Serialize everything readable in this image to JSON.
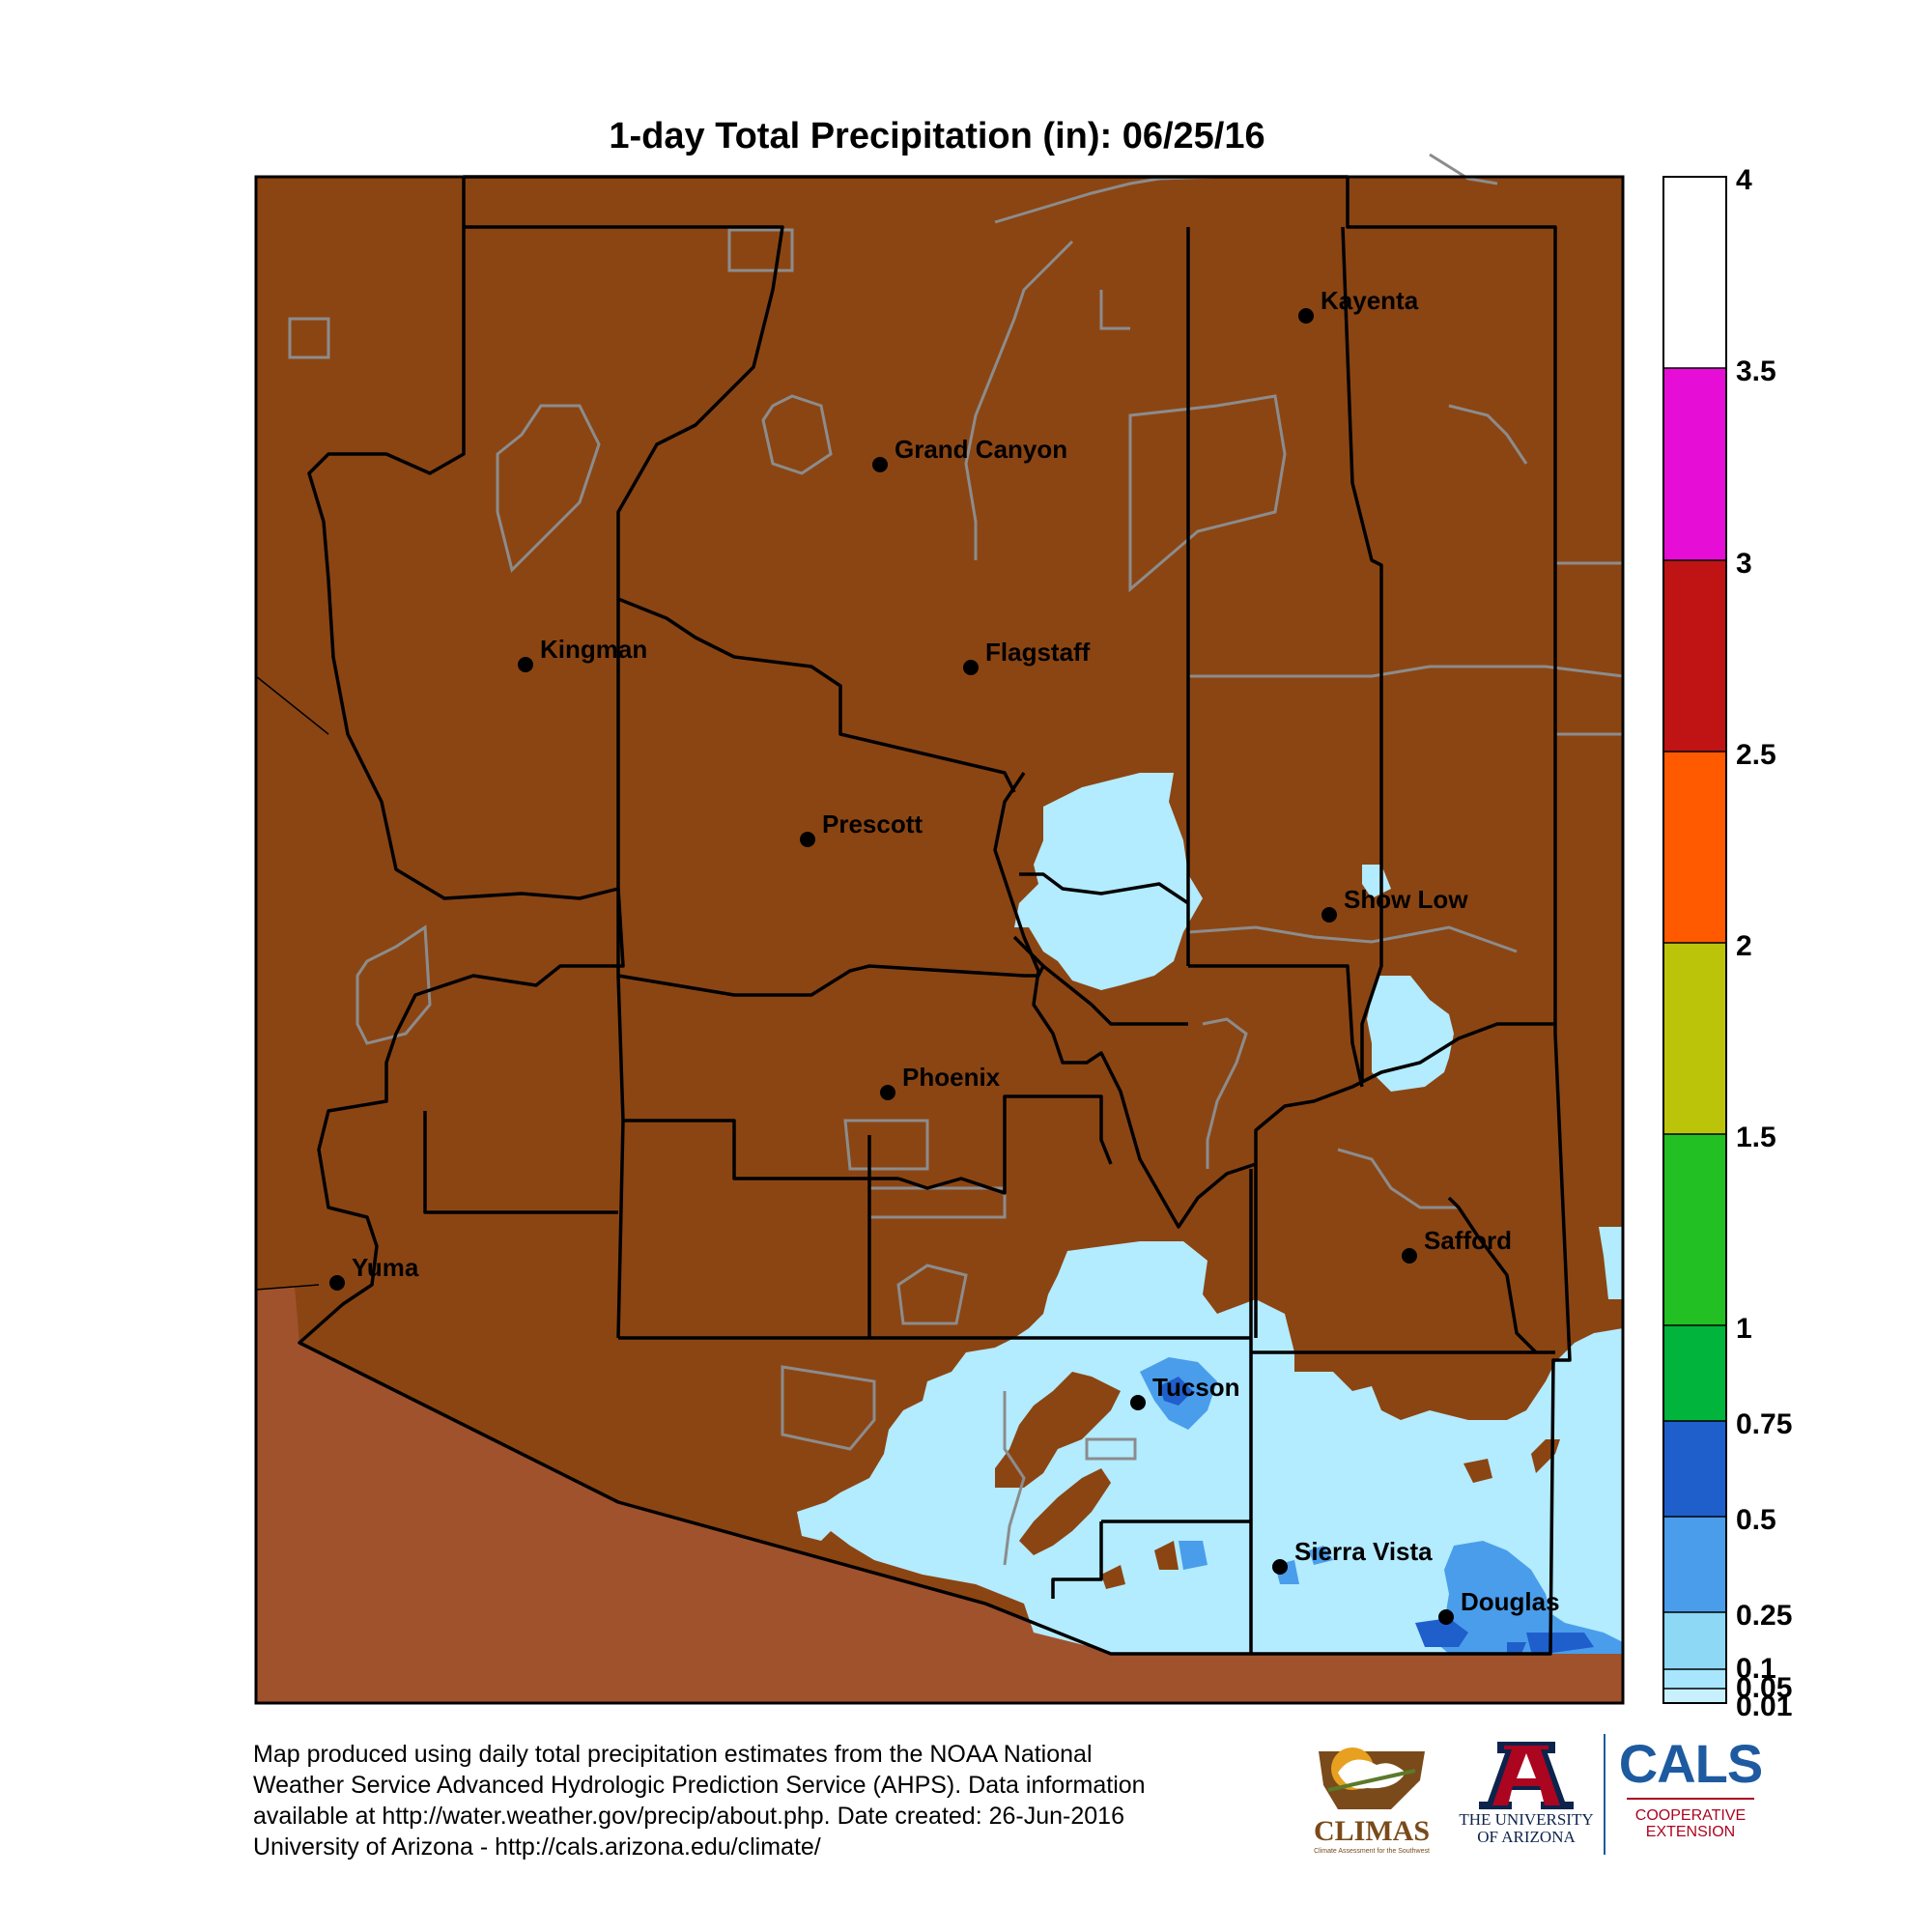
{
  "title": "1-day Total Precipitation (in): 06/25/16",
  "colors": {
    "no_precip": "#8B4513",
    "outside_state": "#A0522D",
    "precip_001_025": "#B3EBFF",
    "precip_025_05": "#4A9DEA",
    "precip_05_075": "#1F5FCC",
    "county_lines": "#000000",
    "boundary_lines": "#8C8C8C"
  },
  "cities": [
    {
      "name": "Kayenta"
    },
    {
      "name": "Grand Canyon"
    },
    {
      "name": "Kingman"
    },
    {
      "name": "Flagstaff"
    },
    {
      "name": "Prescott"
    },
    {
      "name": "Show Low"
    },
    {
      "name": "Phoenix"
    },
    {
      "name": "Safford"
    },
    {
      "name": "Yuma"
    },
    {
      "name": "Tucson"
    },
    {
      "name": "Sierra Vista"
    },
    {
      "name": "Douglas"
    }
  ],
  "colorbar": {
    "ticks": [
      "4",
      "3.5",
      "3",
      "2.5",
      "2",
      "1.5",
      "1",
      "0.75",
      "0.5",
      "0.25",
      "0.1",
      "0.05",
      "0.01"
    ],
    "colors": [
      "#FFFFFF",
      "#E60DD6",
      "#C01414",
      "#FF5A00",
      "#BCC40A",
      "#22C022",
      "#00B43C",
      "#1F5FCC",
      "#4A9DEA",
      "#8CD8F5",
      "#A8E6FF",
      "#C8F0FF"
    ]
  },
  "footer": {
    "line1": "Map produced using daily total precipitation estimates from the NOAA National",
    "line2": "Weather Service Advanced Hydrologic Prediction Service (AHPS). Data information",
    "line3": "available at http://water.weather.gov/precip/about.php. Date created: 26-Jun-2016",
    "line4": "University of Arizona - http://cals.arizona.edu/climate/"
  },
  "logos": {
    "climas": "CLIMAS",
    "climas_sub": "Climate Assessment for the Southwest",
    "ua_line1": "THE UNIVERSITY",
    "ua_line2": "OF ARIZONA",
    "cals": "CALS",
    "cals_line1": "COOPERATIVE",
    "cals_line2": "EXTENSION"
  }
}
